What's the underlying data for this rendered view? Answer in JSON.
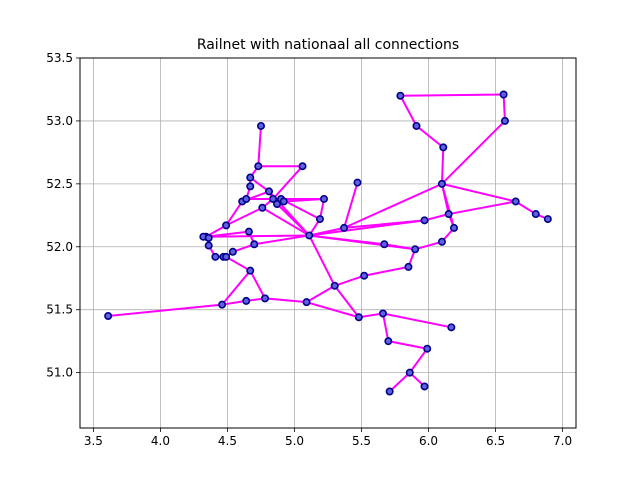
{
  "chart_data": {
    "type": "line",
    "title": "Railnet with nationaal all connections",
    "xlabel": "",
    "ylabel": "",
    "xlim": [
      3.4,
      7.1
    ],
    "ylim": [
      50.56,
      53.5
    ],
    "xticks": [
      3.5,
      4.0,
      4.5,
      5.0,
      5.5,
      6.0,
      6.5,
      7.0
    ],
    "yticks": [
      51.0,
      51.5,
      52.0,
      52.5,
      53.0,
      53.5
    ],
    "xtick_labels": [
      "3.5",
      "4.0",
      "4.5",
      "5.0",
      "5.5",
      "6.0",
      "6.5",
      "7.0"
    ],
    "ytick_labels": [
      "51.0",
      "51.5",
      "52.0",
      "52.5",
      "53.0",
      "53.5"
    ],
    "grid": true,
    "colors": {
      "edge": "#ff00ff",
      "node_edge": "#00008b",
      "node_face": "#6060e0",
      "grid": "#b0b0b0"
    },
    "nodes": [
      [
        4.34,
        52.08
      ],
      [
        4.32,
        52.08
      ],
      [
        4.36,
        52.07
      ],
      [
        4.36,
        52.01
      ],
      [
        4.41,
        51.92
      ],
      [
        4.47,
        51.92
      ],
      [
        4.49,
        51.92
      ],
      [
        4.54,
        51.96
      ],
      [
        4.67,
        51.81
      ],
      [
        4.49,
        52.17
      ],
      [
        4.66,
        52.12
      ],
      [
        4.7,
        52.02
      ],
      [
        4.61,
        52.36
      ],
      [
        4.64,
        52.38
      ],
      [
        4.67,
        52.48
      ],
      [
        4.67,
        52.55
      ],
      [
        4.73,
        52.64
      ],
      [
        4.75,
        52.96
      ],
      [
        5.06,
        52.64
      ],
      [
        4.76,
        52.31
      ],
      [
        4.81,
        52.44
      ],
      [
        4.84,
        52.38
      ],
      [
        4.87,
        52.34
      ],
      [
        4.9,
        52.38
      ],
      [
        4.92,
        52.36
      ],
      [
        5.22,
        52.38
      ],
      [
        5.19,
        52.22
      ],
      [
        5.11,
        52.09
      ],
      [
        5.47,
        52.51
      ],
      [
        5.37,
        52.15
      ],
      [
        5.67,
        52.02
      ],
      [
        5.9,
        51.98
      ],
      [
        5.97,
        52.21
      ],
      [
        6.1,
        52.04
      ],
      [
        6.1,
        52.5
      ],
      [
        6.15,
        52.26
      ],
      [
        6.19,
        52.15
      ],
      [
        6.65,
        52.36
      ],
      [
        6.8,
        52.26
      ],
      [
        6.89,
        52.22
      ],
      [
        6.57,
        53.0
      ],
      [
        6.56,
        53.21
      ],
      [
        5.79,
        53.2
      ],
      [
        5.91,
        52.96
      ],
      [
        6.11,
        52.79
      ],
      [
        5.85,
        51.84
      ],
      [
        5.52,
        51.77
      ],
      [
        5.3,
        51.69
      ],
      [
        5.09,
        51.56
      ],
      [
        4.78,
        51.59
      ],
      [
        4.64,
        51.57
      ],
      [
        4.46,
        51.54
      ],
      [
        3.61,
        51.45
      ],
      [
        5.48,
        51.44
      ],
      [
        5.66,
        51.47
      ],
      [
        6.17,
        51.36
      ],
      [
        5.7,
        51.25
      ],
      [
        5.99,
        51.19
      ],
      [
        5.86,
        51.0
      ],
      [
        5.97,
        50.89
      ],
      [
        5.71,
        50.85
      ]
    ],
    "edges": [
      [
        [
          5.79,
          53.2
        ],
        [
          6.56,
          53.21
        ]
      ],
      [
        [
          6.56,
          53.21
        ],
        [
          6.57,
          53.0
        ]
      ],
      [
        [
          6.57,
          53.0
        ],
        [
          6.1,
          52.5
        ]
      ],
      [
        [
          5.79,
          53.2
        ],
        [
          5.91,
          52.96
        ]
      ],
      [
        [
          5.91,
          52.96
        ],
        [
          6.11,
          52.79
        ]
      ],
      [
        [
          6.11,
          52.79
        ],
        [
          6.1,
          52.5
        ]
      ],
      [
        [
          6.1,
          52.5
        ],
        [
          6.15,
          52.26
        ]
      ],
      [
        [
          6.15,
          52.26
        ],
        [
          6.19,
          52.15
        ]
      ],
      [
        [
          6.19,
          52.15
        ],
        [
          6.1,
          52.04
        ]
      ],
      [
        [
          6.1,
          52.5
        ],
        [
          6.19,
          52.15
        ]
      ],
      [
        [
          6.1,
          52.5
        ],
        [
          6.65,
          52.36
        ]
      ],
      [
        [
          6.1,
          52.5
        ],
        [
          5.37,
          52.15
        ]
      ],
      [
        [
          6.15,
          52.26
        ],
        [
          6.65,
          52.36
        ]
      ],
      [
        [
          6.65,
          52.36
        ],
        [
          6.8,
          52.26
        ]
      ],
      [
        [
          6.8,
          52.26
        ],
        [
          6.89,
          52.22
        ]
      ],
      [
        [
          5.97,
          52.21
        ],
        [
          6.15,
          52.26
        ]
      ],
      [
        [
          5.37,
          52.15
        ],
        [
          5.97,
          52.21
        ]
      ],
      [
        [
          5.11,
          52.09
        ],
        [
          5.97,
          52.21
        ]
      ],
      [
        [
          5.11,
          52.09
        ],
        [
          5.67,
          52.02
        ]
      ],
      [
        [
          5.67,
          52.02
        ],
        [
          5.9,
          51.98
        ]
      ],
      [
        [
          5.9,
          51.98
        ],
        [
          6.1,
          52.04
        ]
      ],
      [
        [
          5.11,
          52.09
        ],
        [
          5.9,
          51.98
        ]
      ],
      [
        [
          5.11,
          52.09
        ],
        [
          5.37,
          52.15
        ]
      ],
      [
        [
          5.37,
          52.15
        ],
        [
          5.47,
          52.51
        ]
      ],
      [
        [
          5.11,
          52.09
        ],
        [
          5.19,
          52.22
        ]
      ],
      [
        [
          5.19,
          52.22
        ],
        [
          5.22,
          52.38
        ]
      ],
      [
        [
          4.92,
          52.36
        ],
        [
          5.22,
          52.38
        ]
      ],
      [
        [
          4.64,
          52.38
        ],
        [
          5.22,
          52.38
        ]
      ],
      [
        [
          4.9,
          52.38
        ],
        [
          5.19,
          52.22
        ]
      ],
      [
        [
          5.11,
          52.09
        ],
        [
          4.87,
          52.34
        ]
      ],
      [
        [
          4.76,
          52.31
        ],
        [
          5.11,
          52.09
        ]
      ],
      [
        [
          4.81,
          52.44
        ],
        [
          5.11,
          52.09
        ]
      ],
      [
        [
          4.73,
          52.64
        ],
        [
          5.06,
          52.64
        ]
      ],
      [
        [
          5.06,
          52.64
        ],
        [
          4.84,
          52.38
        ]
      ],
      [
        [
          4.73,
          52.64
        ],
        [
          4.67,
          52.55
        ]
      ],
      [
        [
          4.75,
          52.96
        ],
        [
          4.73,
          52.64
        ]
      ],
      [
        [
          4.67,
          52.55
        ],
        [
          4.67,
          52.48
        ]
      ],
      [
        [
          4.67,
          52.48
        ],
        [
          4.64,
          52.38
        ]
      ],
      [
        [
          4.64,
          52.38
        ],
        [
          4.61,
          52.36
        ]
      ],
      [
        [
          4.61,
          52.36
        ],
        [
          4.81,
          52.44
        ]
      ],
      [
        [
          4.81,
          52.44
        ],
        [
          4.84,
          52.38
        ]
      ],
      [
        [
          4.84,
          52.38
        ],
        [
          4.87,
          52.34
        ]
      ],
      [
        [
          4.87,
          52.34
        ],
        [
          4.9,
          52.38
        ]
      ],
      [
        [
          4.9,
          52.38
        ],
        [
          4.92,
          52.36
        ]
      ],
      [
        [
          4.67,
          52.55
        ],
        [
          4.81,
          52.44
        ]
      ],
      [
        [
          4.49,
          52.17
        ],
        [
          4.61,
          52.36
        ]
      ],
      [
        [
          4.49,
          52.17
        ],
        [
          4.76,
          52.31
        ]
      ],
      [
        [
          4.76,
          52.31
        ],
        [
          4.84,
          52.38
        ]
      ],
      [
        [
          4.34,
          52.08
        ],
        [
          5.11,
          52.09
        ]
      ],
      [
        [
          4.34,
          52.08
        ],
        [
          4.49,
          52.17
        ]
      ],
      [
        [
          4.32,
          52.08
        ],
        [
          4.36,
          52.07
        ]
      ],
      [
        [
          4.36,
          52.07
        ],
        [
          4.36,
          52.01
        ]
      ],
      [
        [
          4.36,
          52.01
        ],
        [
          4.41,
          51.92
        ]
      ],
      [
        [
          4.41,
          51.92
        ],
        [
          4.47,
          51.92
        ]
      ],
      [
        [
          4.47,
          51.92
        ],
        [
          4.49,
          51.92
        ]
      ],
      [
        [
          4.49,
          51.92
        ],
        [
          4.54,
          51.96
        ]
      ],
      [
        [
          4.54,
          51.96
        ],
        [
          4.7,
          52.02
        ]
      ],
      [
        [
          4.7,
          52.02
        ],
        [
          4.66,
          52.12
        ]
      ],
      [
        [
          4.66,
          52.12
        ],
        [
          4.34,
          52.08
        ]
      ],
      [
        [
          4.7,
          52.02
        ],
        [
          5.11,
          52.09
        ]
      ],
      [
        [
          4.49,
          51.92
        ],
        [
          4.67,
          51.81
        ]
      ],
      [
        [
          4.67,
          51.81
        ],
        [
          4.78,
          51.59
        ]
      ],
      [
        [
          4.78,
          51.59
        ],
        [
          4.64,
          51.57
        ]
      ],
      [
        [
          4.64,
          51.57
        ],
        [
          4.46,
          51.54
        ]
      ],
      [
        [
          4.46,
          51.54
        ],
        [
          3.61,
          51.45
        ]
      ],
      [
        [
          4.46,
          51.54
        ],
        [
          4.67,
          51.81
        ]
      ],
      [
        [
          4.78,
          51.59
        ],
        [
          5.09,
          51.56
        ]
      ],
      [
        [
          5.09,
          51.56
        ],
        [
          5.3,
          51.69
        ]
      ],
      [
        [
          5.3,
          51.69
        ],
        [
          5.52,
          51.77
        ]
      ],
      [
        [
          5.52,
          51.77
        ],
        [
          5.85,
          51.84
        ]
      ],
      [
        [
          5.85,
          51.84
        ],
        [
          5.9,
          51.98
        ]
      ],
      [
        [
          5.3,
          51.69
        ],
        [
          5.11,
          52.09
        ]
      ],
      [
        [
          5.09,
          51.56
        ],
        [
          5.48,
          51.44
        ]
      ],
      [
        [
          5.3,
          51.69
        ],
        [
          5.48,
          51.44
        ]
      ],
      [
        [
          5.48,
          51.44
        ],
        [
          5.66,
          51.47
        ]
      ],
      [
        [
          5.66,
          51.47
        ],
        [
          6.17,
          51.36
        ]
      ],
      [
        [
          5.66,
          51.47
        ],
        [
          5.7,
          51.25
        ]
      ],
      [
        [
          5.7,
          51.25
        ],
        [
          5.99,
          51.19
        ]
      ],
      [
        [
          5.99,
          51.19
        ],
        [
          5.86,
          51.0
        ]
      ],
      [
        [
          5.86,
          51.0
        ],
        [
          5.97,
          50.89
        ]
      ],
      [
        [
          5.86,
          51.0
        ],
        [
          5.71,
          50.85
        ]
      ]
    ]
  }
}
